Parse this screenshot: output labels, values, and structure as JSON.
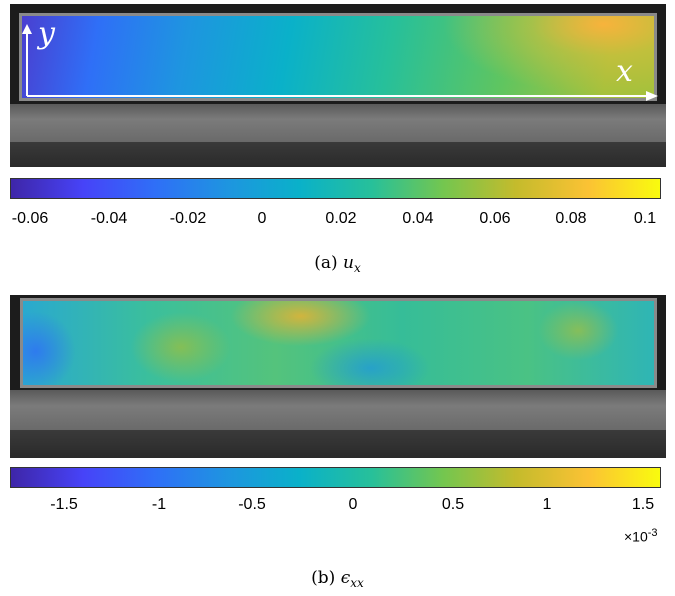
{
  "figure_a": {
    "axis_x": "x",
    "axis_y": "y",
    "colorbar_ticks": [
      "-0.06",
      "-0.04",
      "-0.02",
      "0",
      "0.02",
      "0.04",
      "0.06",
      "0.08",
      "0.1"
    ],
    "caption_tag": "(a)",
    "caption_symbol": "u",
    "caption_subscript": "x"
  },
  "figure_b": {
    "colorbar_ticks": [
      "-1.5",
      "-1",
      "-0.5",
      "0",
      "0.5",
      "1",
      "1.5"
    ],
    "colorbar_exponent_base": "×10",
    "colorbar_exponent_power": "-3",
    "caption_tag": "(b)",
    "caption_symbol": "ϵ",
    "caption_subscript": "xx"
  },
  "colors": {
    "parula": [
      "#3e26a8",
      "#4743f8",
      "#2f6ff7",
      "#1e95e0",
      "#0ab1c9",
      "#27c09a",
      "#74c64f",
      "#c4bb2c",
      "#fbc234",
      "#f9fb0e"
    ]
  }
}
